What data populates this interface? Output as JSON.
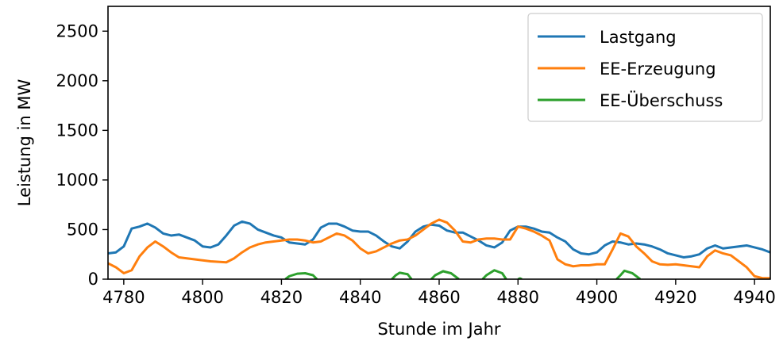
{
  "chart_data": {
    "type": "line",
    "xlabel": "Stunde im Jahr",
    "ylabel": "Leistung in MW",
    "xlim": [
      4776,
      4944
    ],
    "ylim": [
      0,
      2750
    ],
    "xticks": [
      4780,
      4800,
      4820,
      4840,
      4860,
      4880,
      4900,
      4920,
      4940
    ],
    "yticks": [
      0,
      500,
      1000,
      1500,
      2000,
      2500
    ],
    "grid": false,
    "legend_position": "top-right",
    "series": [
      {
        "name": "Lastgang",
        "color": "#1f77b4",
        "points": [
          [
            4776,
            260
          ],
          [
            4778,
            270
          ],
          [
            4780,
            330
          ],
          [
            4782,
            510
          ],
          [
            4784,
            530
          ],
          [
            4786,
            560
          ],
          [
            4788,
            520
          ],
          [
            4790,
            460
          ],
          [
            4792,
            440
          ],
          [
            4794,
            450
          ],
          [
            4796,
            420
          ],
          [
            4798,
            390
          ],
          [
            4800,
            330
          ],
          [
            4802,
            320
          ],
          [
            4804,
            350
          ],
          [
            4806,
            440
          ],
          [
            4808,
            540
          ],
          [
            4810,
            580
          ],
          [
            4812,
            560
          ],
          [
            4814,
            500
          ],
          [
            4816,
            470
          ],
          [
            4818,
            440
          ],
          [
            4820,
            420
          ],
          [
            4822,
            370
          ],
          [
            4824,
            360
          ],
          [
            4826,
            350
          ],
          [
            4828,
            400
          ],
          [
            4830,
            520
          ],
          [
            4832,
            560
          ],
          [
            4834,
            560
          ],
          [
            4836,
            530
          ],
          [
            4838,
            490
          ],
          [
            4840,
            480
          ],
          [
            4842,
            480
          ],
          [
            4844,
            440
          ],
          [
            4846,
            380
          ],
          [
            4848,
            330
          ],
          [
            4850,
            310
          ],
          [
            4852,
            380
          ],
          [
            4854,
            480
          ],
          [
            4856,
            530
          ],
          [
            4858,
            550
          ],
          [
            4860,
            540
          ],
          [
            4862,
            490
          ],
          [
            4864,
            470
          ],
          [
            4866,
            470
          ],
          [
            4868,
            430
          ],
          [
            4870,
            390
          ],
          [
            4872,
            340
          ],
          [
            4874,
            320
          ],
          [
            4876,
            370
          ],
          [
            4878,
            490
          ],
          [
            4880,
            530
          ],
          [
            4882,
            530
          ],
          [
            4884,
            510
          ],
          [
            4886,
            480
          ],
          [
            4888,
            470
          ],
          [
            4890,
            420
          ],
          [
            4892,
            380
          ],
          [
            4894,
            300
          ],
          [
            4896,
            260
          ],
          [
            4898,
            250
          ],
          [
            4900,
            270
          ],
          [
            4902,
            340
          ],
          [
            4904,
            380
          ],
          [
            4906,
            370
          ],
          [
            4908,
            350
          ],
          [
            4910,
            360
          ],
          [
            4912,
            350
          ],
          [
            4914,
            330
          ],
          [
            4916,
            300
          ],
          [
            4918,
            260
          ],
          [
            4920,
            240
          ],
          [
            4922,
            220
          ],
          [
            4924,
            230
          ],
          [
            4926,
            250
          ],
          [
            4928,
            310
          ],
          [
            4930,
            340
          ],
          [
            4932,
            310
          ],
          [
            4934,
            320
          ],
          [
            4936,
            330
          ],
          [
            4938,
            340
          ],
          [
            4940,
            320
          ],
          [
            4942,
            300
          ],
          [
            4944,
            270
          ]
        ]
      },
      {
        "name": "EE-Erzeugung",
        "color": "#ff7f0e",
        "points": [
          [
            4776,
            160
          ],
          [
            4778,
            120
          ],
          [
            4780,
            60
          ],
          [
            4782,
            90
          ],
          [
            4784,
            230
          ],
          [
            4786,
            320
          ],
          [
            4788,
            380
          ],
          [
            4790,
            330
          ],
          [
            4792,
            270
          ],
          [
            4794,
            220
          ],
          [
            4796,
            210
          ],
          [
            4798,
            200
          ],
          [
            4800,
            190
          ],
          [
            4802,
            180
          ],
          [
            4804,
            175
          ],
          [
            4806,
            170
          ],
          [
            4808,
            210
          ],
          [
            4810,
            270
          ],
          [
            4812,
            320
          ],
          [
            4814,
            350
          ],
          [
            4816,
            370
          ],
          [
            4818,
            380
          ],
          [
            4820,
            390
          ],
          [
            4822,
            400
          ],
          [
            4824,
            400
          ],
          [
            4826,
            390
          ],
          [
            4828,
            370
          ],
          [
            4830,
            380
          ],
          [
            4832,
            420
          ],
          [
            4834,
            460
          ],
          [
            4836,
            440
          ],
          [
            4838,
            390
          ],
          [
            4840,
            310
          ],
          [
            4842,
            260
          ],
          [
            4844,
            280
          ],
          [
            4846,
            320
          ],
          [
            4848,
            360
          ],
          [
            4850,
            390
          ],
          [
            4852,
            400
          ],
          [
            4854,
            440
          ],
          [
            4856,
            500
          ],
          [
            4858,
            560
          ],
          [
            4860,
            600
          ],
          [
            4862,
            570
          ],
          [
            4864,
            490
          ],
          [
            4866,
            380
          ],
          [
            4868,
            370
          ],
          [
            4870,
            400
          ],
          [
            4872,
            410
          ],
          [
            4874,
            410
          ],
          [
            4876,
            400
          ],
          [
            4878,
            400
          ],
          [
            4880,
            530
          ],
          [
            4882,
            510
          ],
          [
            4884,
            480
          ],
          [
            4886,
            440
          ],
          [
            4888,
            390
          ],
          [
            4890,
            200
          ],
          [
            4892,
            150
          ],
          [
            4894,
            130
          ],
          [
            4896,
            140
          ],
          [
            4898,
            140
          ],
          [
            4900,
            150
          ],
          [
            4902,
            150
          ],
          [
            4904,
            300
          ],
          [
            4906,
            460
          ],
          [
            4908,
            430
          ],
          [
            4910,
            330
          ],
          [
            4912,
            260
          ],
          [
            4914,
            180
          ],
          [
            4916,
            150
          ],
          [
            4918,
            145
          ],
          [
            4920,
            150
          ],
          [
            4922,
            140
          ],
          [
            4924,
            130
          ],
          [
            4926,
            120
          ],
          [
            4928,
            230
          ],
          [
            4930,
            290
          ],
          [
            4932,
            260
          ],
          [
            4934,
            240
          ],
          [
            4936,
            180
          ],
          [
            4938,
            120
          ],
          [
            4940,
            30
          ],
          [
            4942,
            10
          ],
          [
            4944,
            10
          ]
        ]
      },
      {
        "name": "EE-Überschuss",
        "color": "#2ca02c",
        "segments": [
          [
            [
              4821,
              0
            ],
            [
              4822,
              30
            ],
            [
              4824,
              55
            ],
            [
              4826,
              60
            ],
            [
              4828,
              40
            ],
            [
              4829,
              0
            ]
          ],
          [
            [
              4848,
              0
            ],
            [
              4849,
              40
            ],
            [
              4850,
              65
            ],
            [
              4852,
              50
            ],
            [
              4853,
              0
            ]
          ],
          [
            [
              4858,
              0
            ],
            [
              4859,
              40
            ],
            [
              4861,
              80
            ],
            [
              4863,
              60
            ],
            [
              4865,
              0
            ]
          ],
          [
            [
              4871,
              0
            ],
            [
              4872,
              40
            ],
            [
              4874,
              90
            ],
            [
              4876,
              60
            ],
            [
              4877,
              0
            ]
          ],
          [
            [
              4880,
              0
            ],
            [
              4880.5,
              8
            ],
            [
              4881,
              0
            ]
          ],
          [
            [
              4905,
              0
            ],
            [
              4906,
              40
            ],
            [
              4907,
              85
            ],
            [
              4909,
              60
            ],
            [
              4911,
              0
            ]
          ]
        ]
      }
    ]
  }
}
